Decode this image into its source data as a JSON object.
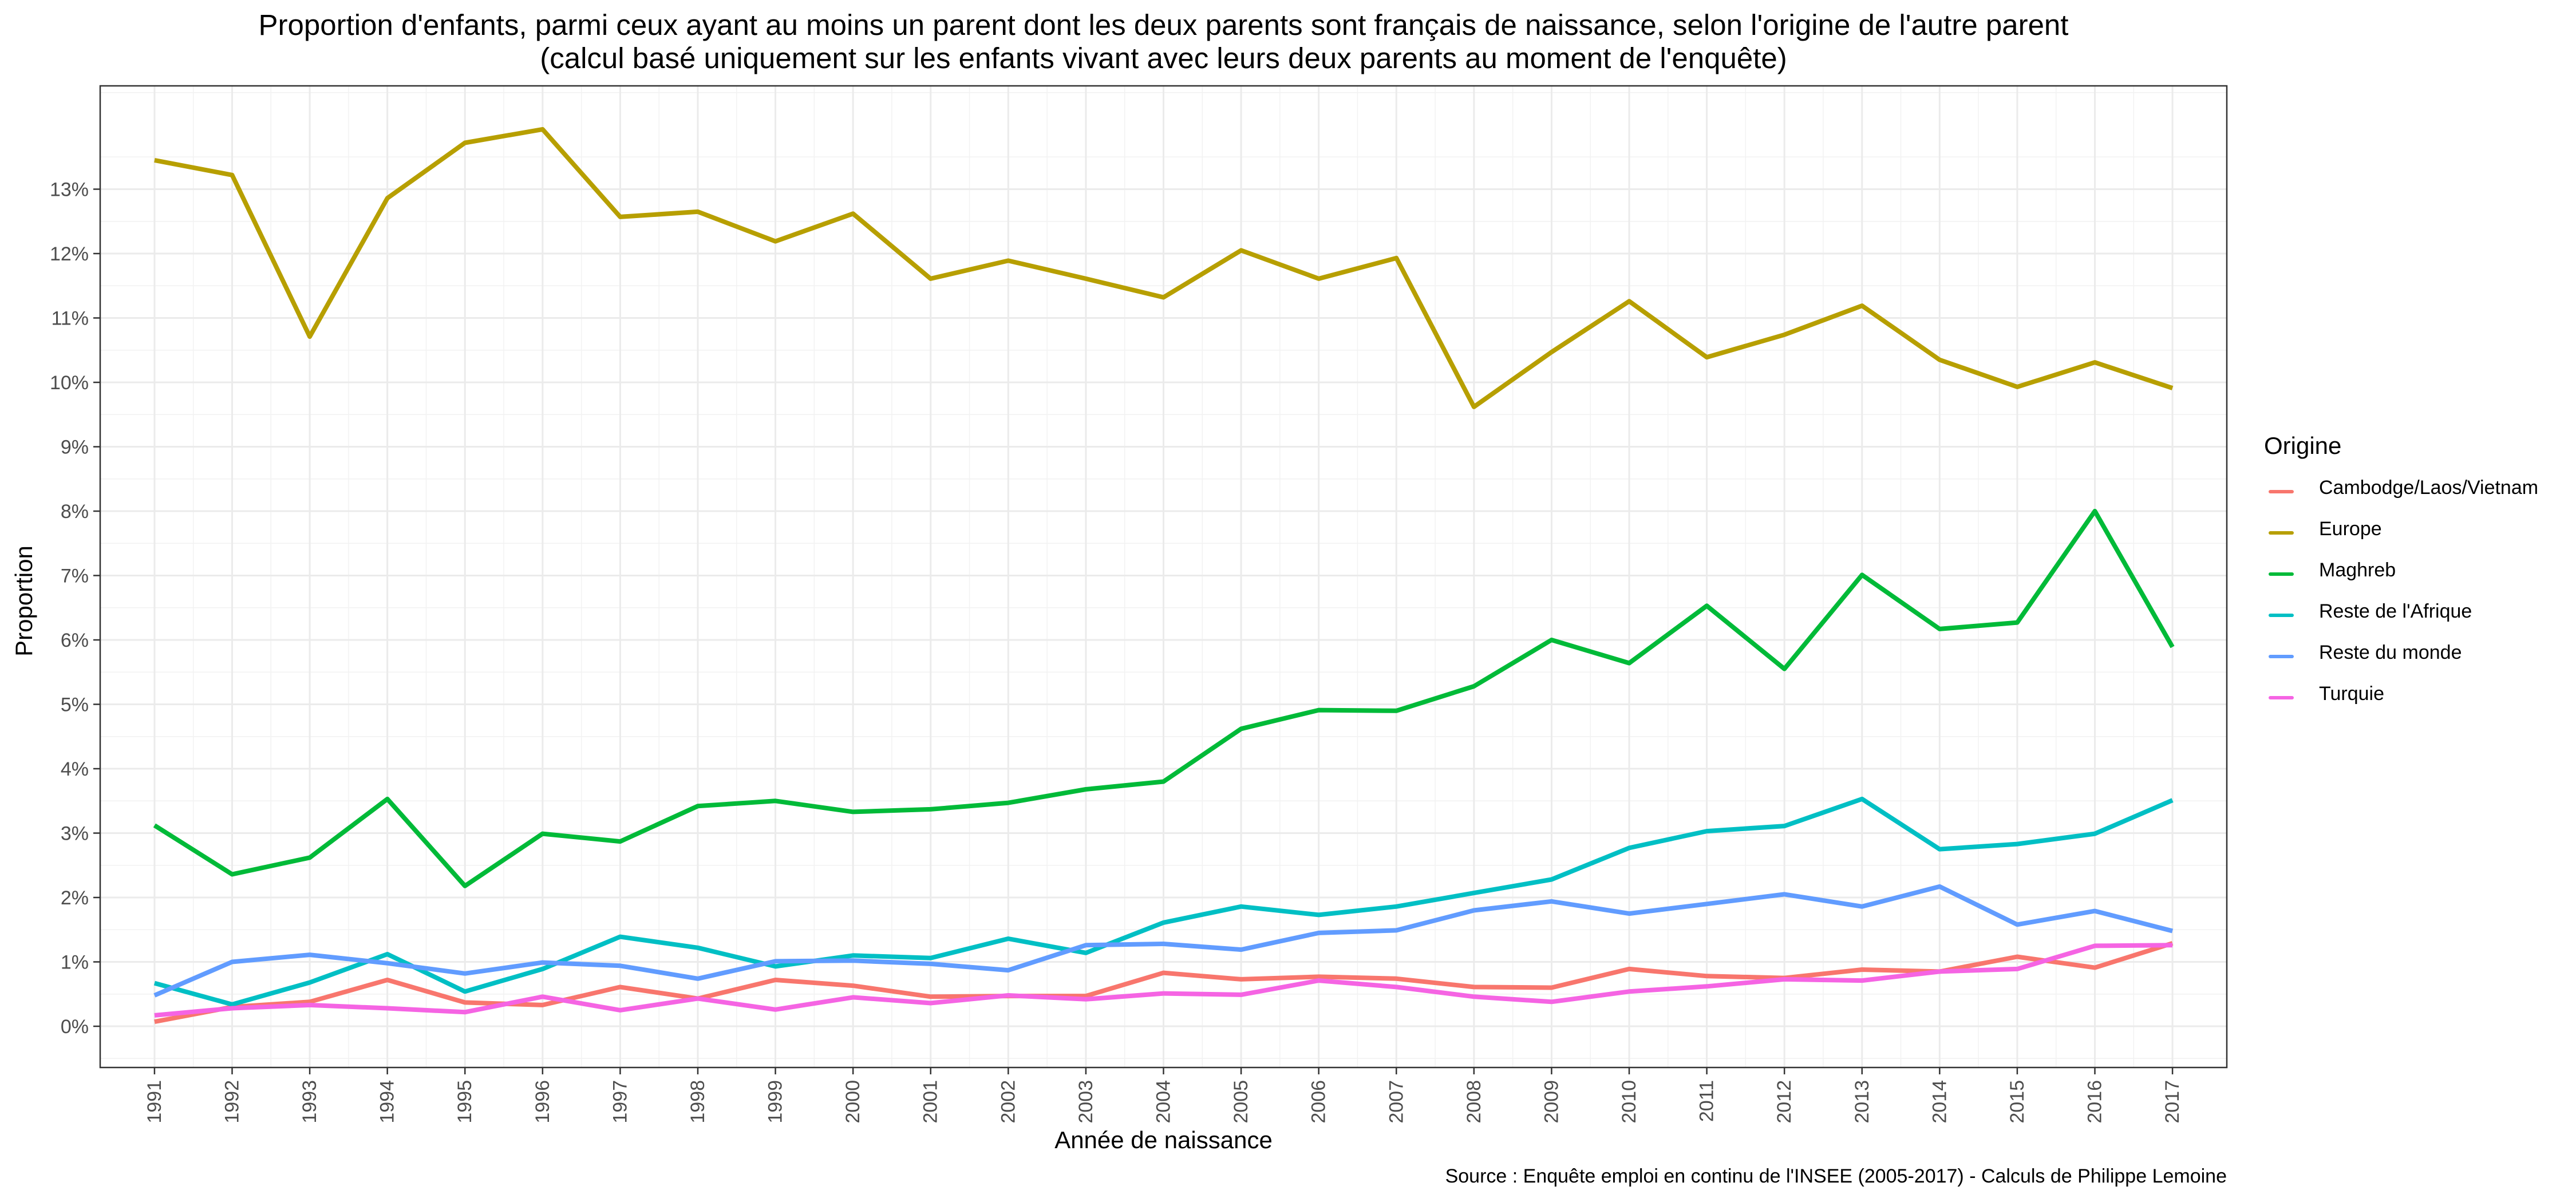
{
  "chart_data": {
    "type": "line",
    "title": "Proportion d'enfants, parmi ceux ayant au moins un parent dont les deux parents sont français de naissance, selon l'origine de l'autre parent",
    "subtitle": "(calcul basé uniquement sur les enfants vivant avec leurs deux parents au moment de l'enquête)",
    "xlabel": "Année de naissance",
    "ylabel": "Proportion",
    "caption": "Source : Enquête emploi en continu de l'INSEE (2005-2017) - Calculs de Philippe Lemoine",
    "legend_title": "Origine",
    "legend_position": "right",
    "grid": true,
    "ylim": [
      -0.6,
      15
    ],
    "y_ticks": [
      "0%",
      "1%",
      "2%",
      "3%",
      "4%",
      "5%",
      "6%",
      "7%",
      "8%",
      "9%",
      "10%",
      "11%",
      "12%",
      "13%"
    ],
    "x": [
      1991,
      1992,
      1993,
      1994,
      1995,
      1996,
      1997,
      1998,
      1999,
      2000,
      2001,
      2002,
      2003,
      2004,
      2005,
      2006,
      2007,
      2008,
      2009,
      2010,
      2011,
      2012,
      2013,
      2014,
      2015,
      2016,
      2017
    ],
    "series": [
      {
        "name": "Cambodge/Laos/Vietnam",
        "color": "#F8766D",
        "values": [
          0.07,
          0.3,
          0.38,
          0.72,
          0.37,
          0.33,
          0.61,
          0.43,
          0.72,
          0.63,
          0.46,
          0.47,
          0.47,
          0.83,
          0.73,
          0.77,
          0.74,
          0.61,
          0.6,
          0.89,
          0.78,
          0.75,
          0.88,
          0.85,
          1.08,
          0.91,
          1.29
        ]
      },
      {
        "name": "Europe",
        "color": "#B79F00",
        "values": [
          13.45,
          13.22,
          10.71,
          12.86,
          13.72,
          13.93,
          12.57,
          12.65,
          12.19,
          12.62,
          11.61,
          11.89,
          11.61,
          11.32,
          12.05,
          11.61,
          11.93,
          9.62,
          10.47,
          11.26,
          10.39,
          10.74,
          11.19,
          10.35,
          9.93,
          10.31,
          9.91
        ]
      },
      {
        "name": "Maghreb",
        "color": "#00BA38",
        "values": [
          3.12,
          2.36,
          2.62,
          3.53,
          2.18,
          2.99,
          2.87,
          3.42,
          3.5,
          3.33,
          3.37,
          3.47,
          3.68,
          3.8,
          4.62,
          4.91,
          4.9,
          5.28,
          6.0,
          5.64,
          6.53,
          5.55,
          7.01,
          6.17,
          6.27,
          8.0,
          5.89
        ]
      },
      {
        "name": "Reste de l'Afrique",
        "color": "#00BFC4",
        "values": [
          0.67,
          0.34,
          0.68,
          1.12,
          0.54,
          0.89,
          1.39,
          1.22,
          0.93,
          1.1,
          1.06,
          1.36,
          1.14,
          1.61,
          1.86,
          1.73,
          1.86,
          2.07,
          2.28,
          2.77,
          3.03,
          3.11,
          3.53,
          2.75,
          2.83,
          2.99,
          3.51
        ]
      },
      {
        "name": "Reste du monde",
        "color": "#619CFF",
        "values": [
          0.48,
          1.0,
          1.11,
          0.98,
          0.82,
          0.99,
          0.94,
          0.74,
          1.01,
          1.02,
          0.97,
          0.87,
          1.26,
          1.28,
          1.19,
          1.45,
          1.49,
          1.8,
          1.94,
          1.75,
          1.9,
          2.05,
          1.86,
          2.17,
          1.58,
          1.79,
          1.48
        ]
      },
      {
        "name": "Turquie",
        "color": "#F564E3",
        "values": [
          0.17,
          0.28,
          0.33,
          0.28,
          0.22,
          0.46,
          0.25,
          0.43,
          0.26,
          0.45,
          0.36,
          0.48,
          0.42,
          0.51,
          0.49,
          0.71,
          0.61,
          0.46,
          0.38,
          0.54,
          0.62,
          0.73,
          0.71,
          0.85,
          0.89,
          1.25,
          1.26
        ]
      }
    ]
  }
}
